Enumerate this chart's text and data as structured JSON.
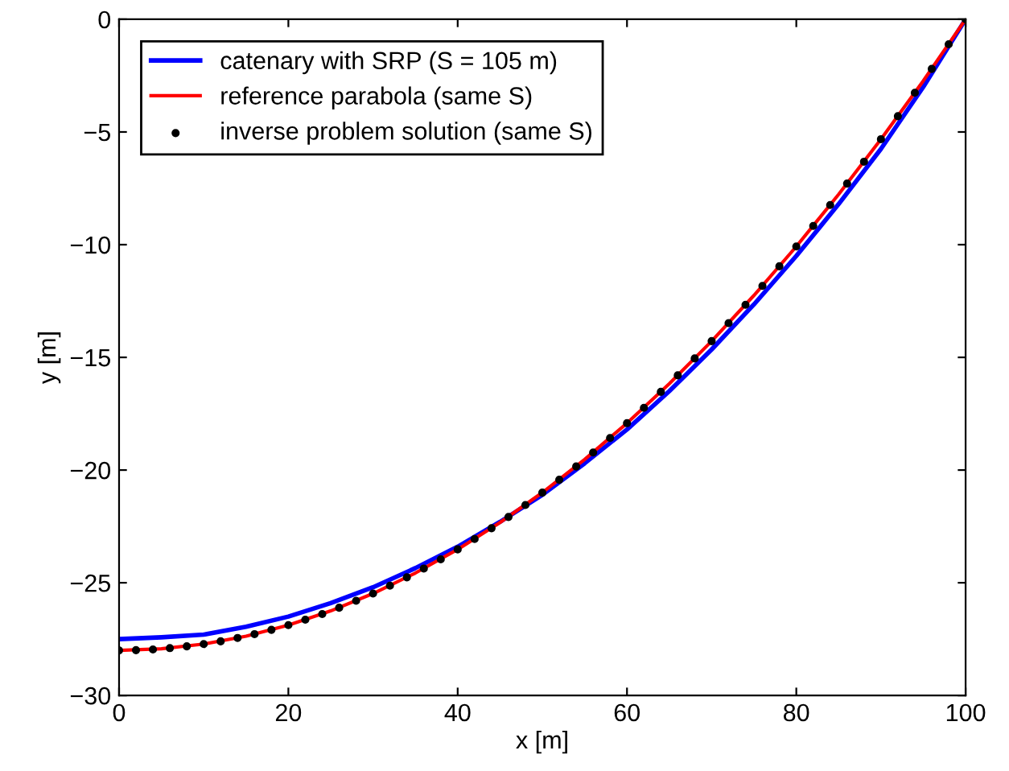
{
  "chart_data": {
    "type": "line",
    "xlabel": "x [m]",
    "ylabel": "y [m]",
    "xlim": [
      0,
      100
    ],
    "ylim": [
      -30,
      0
    ],
    "xticks": [
      0,
      20,
      40,
      60,
      80,
      100
    ],
    "yticks": [
      -30,
      -25,
      -20,
      -15,
      -10,
      -5,
      0
    ],
    "legend": "top left",
    "series": [
      {
        "name": "catenary with SRP (S = 105 m)",
        "color": "#0000ff",
        "x": [
          0,
          5,
          10,
          15,
          20,
          25,
          30,
          35,
          40,
          45,
          50,
          55,
          60,
          65,
          70,
          75,
          80,
          85,
          90,
          95,
          100
        ],
        "values": [
          -27.5,
          -27.42,
          -27.3,
          -26.95,
          -26.5,
          -25.9,
          -25.2,
          -24.35,
          -23.4,
          -22.3,
          -21.1,
          -19.7,
          -18.2,
          -16.5,
          -14.65,
          -12.65,
          -10.5,
          -8.2,
          -5.75,
          -3.0,
          0
        ]
      },
      {
        "name": "reference parabola (same S)",
        "color": "#ff0000",
        "x": [
          0,
          5,
          10,
          15,
          20,
          25,
          30,
          35,
          40,
          45,
          50,
          55,
          60,
          65,
          70,
          75,
          80,
          85,
          90,
          95,
          100
        ],
        "values": [
          -28,
          -27.93,
          -27.72,
          -27.37,
          -26.88,
          -26.25,
          -25.48,
          -24.57,
          -23.52,
          -22.33,
          -21,
          -19.53,
          -17.92,
          -16.17,
          -14.28,
          -12.25,
          -10.08,
          -7.77,
          -5.32,
          -2.73,
          0
        ]
      },
      {
        "name": "inverse problem solution (same S)",
        "type": "scatter",
        "marker": "circle",
        "color": "#000000",
        "x": [
          0,
          2,
          4,
          6,
          8,
          10,
          12,
          14,
          16,
          18,
          20,
          22,
          24,
          26,
          28,
          30,
          32,
          34,
          36,
          38,
          40,
          42,
          44,
          46,
          48,
          50,
          52,
          54,
          56,
          58,
          60,
          62,
          64,
          66,
          68,
          70,
          72,
          74,
          76,
          78,
          80,
          82,
          84,
          86,
          88,
          90,
          92,
          94,
          96,
          98,
          100
        ],
        "values": [
          -28,
          -27.99,
          -27.96,
          -27.9,
          -27.82,
          -27.72,
          -27.6,
          -27.45,
          -27.28,
          -27.09,
          -26.88,
          -26.64,
          -26.39,
          -26.11,
          -25.8,
          -25.48,
          -25.13,
          -24.76,
          -24.37,
          -23.96,
          -23.52,
          -23.06,
          -22.58,
          -22.08,
          -21.55,
          -21,
          -20.43,
          -19.84,
          -19.22,
          -18.58,
          -17.92,
          -17.24,
          -16.53,
          -15.8,
          -15.05,
          -14.28,
          -13.48,
          -12.67,
          -11.83,
          -10.96,
          -10.08,
          -9.17,
          -8.24,
          -7.29,
          -6.32,
          -5.32,
          -4.3,
          -3.26,
          -2.2,
          -1.11,
          0
        ]
      }
    ]
  }
}
